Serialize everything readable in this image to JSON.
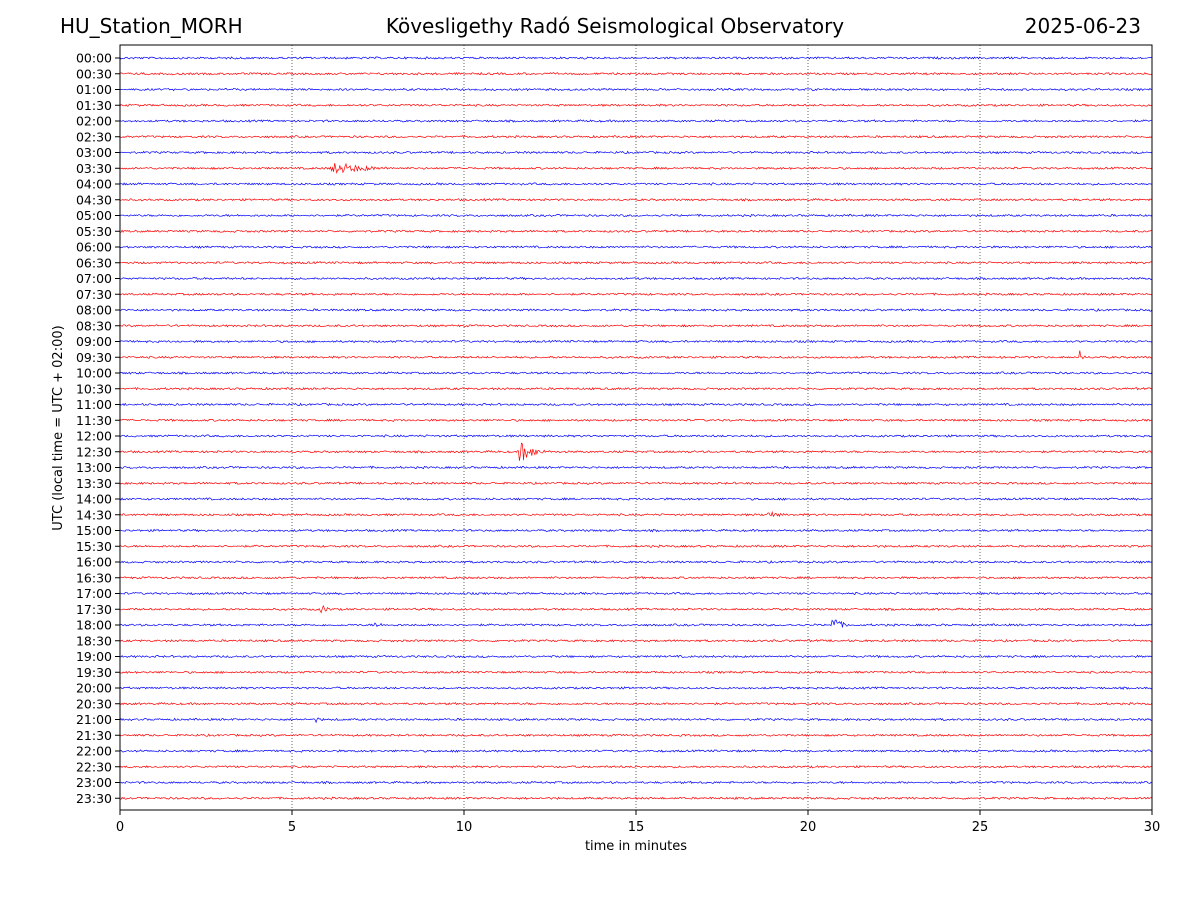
{
  "header": {
    "station": "HU_Station_MORH",
    "observatory": "Kövesligethy Radó Seismological Observatory",
    "date": "2025-06-23"
  },
  "chart_data": {
    "type": "line",
    "title": "Kövesligethy Radó Seismological Observatory",
    "xlabel": "time in minutes",
    "ylabel": "UTC (local time = UTC + 02:00)",
    "xlim": [
      0,
      30
    ],
    "x_ticks": [
      0,
      5,
      10,
      15,
      20,
      25,
      30
    ],
    "grid": "vertical dotted lines at 5, 10, 15, 20, 25",
    "colors": [
      "#0000ff",
      "#ff0000"
    ],
    "rows": [
      "00:00",
      "00:30",
      "01:00",
      "01:30",
      "02:00",
      "02:30",
      "03:00",
      "03:30",
      "04:00",
      "04:30",
      "05:00",
      "05:30",
      "06:00",
      "06:30",
      "07:00",
      "07:30",
      "08:00",
      "08:30",
      "09:00",
      "09:30",
      "10:00",
      "10:30",
      "11:00",
      "11:30",
      "12:00",
      "12:30",
      "13:00",
      "13:30",
      "14:00",
      "14:30",
      "15:00",
      "15:30",
      "16:00",
      "16:30",
      "17:00",
      "17:30",
      "18:00",
      "18:30",
      "19:00",
      "19:30",
      "20:00",
      "20:30",
      "21:00",
      "21:30",
      "22:00",
      "22:30",
      "23:00",
      "23:30"
    ],
    "events": [
      {
        "row": "03:30",
        "start_min": 6.1,
        "duration_min": 3.6,
        "amplitude": 0.55
      },
      {
        "row": "09:30",
        "start_min": 27.9,
        "duration_min": 0.3,
        "amplitude": 0.7
      },
      {
        "row": "12:30",
        "start_min": 11.6,
        "duration_min": 1.4,
        "amplitude": 1.0
      },
      {
        "row": "14:30",
        "start_min": 18.8,
        "duration_min": 1.3,
        "amplitude": 0.35
      },
      {
        "row": "17:30",
        "start_min": 5.8,
        "duration_min": 1.0,
        "amplitude": 0.4
      },
      {
        "row": "18:00",
        "start_min": 7.4,
        "duration_min": 0.7,
        "amplitude": 0.35
      },
      {
        "row": "18:00",
        "start_min": 20.7,
        "duration_min": 0.8,
        "amplitude": 0.9
      },
      {
        "row": "21:00",
        "start_min": 5.7,
        "duration_min": 0.6,
        "amplitude": 0.3
      }
    ]
  }
}
